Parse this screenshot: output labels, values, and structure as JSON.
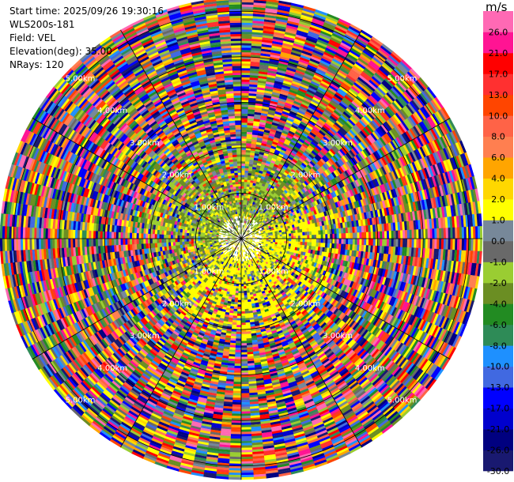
{
  "header": {
    "start_time": "Start time: 2025/09/26 19:30:16",
    "instrument": "WLS200s-181",
    "field": "Field: VEL",
    "elevation": "Elevation(deg): 35.00",
    "nrays": "NRays: 120"
  },
  "colorbar": {
    "title": "m/s",
    "bins": [
      {
        "label": "-30.0",
        "color": "#191970"
      },
      {
        "label": "-26.0",
        "color": "#000080"
      },
      {
        "label": "-21.0",
        "color": "#0000cd"
      },
      {
        "label": "-17.0",
        "color": "#0000ff"
      },
      {
        "label": "-13.0",
        "color": "#4169e1"
      },
      {
        "label": "-10.0",
        "color": "#1e90ff"
      },
      {
        "label": "-8.0",
        "color": "#2e8b57"
      },
      {
        "label": "-6.0",
        "color": "#228b22"
      },
      {
        "label": "-4.0",
        "color": "#6b8e23"
      },
      {
        "label": "-2.0",
        "color": "#9acd32"
      },
      {
        "label": "-1.0",
        "color": "#696969"
      },
      {
        "label": "0.0",
        "color": "#778899"
      },
      {
        "label": "1.0",
        "color": "#ffff00"
      },
      {
        "label": "2.0",
        "color": "#ffd700"
      },
      {
        "label": "4.0",
        "color": "#ffa500"
      },
      {
        "label": "6.0",
        "color": "#ff7f50"
      },
      {
        "label": "8.0",
        "color": "#ff6347"
      },
      {
        "label": "10.0",
        "color": "#ff4500"
      },
      {
        "label": "13.0",
        "color": "#ff3030"
      },
      {
        "label": "17.0",
        "color": "#ff0000"
      },
      {
        "label": "21.0",
        "color": "#ff1493"
      },
      {
        "label": "26.0",
        "color": "#ff69b4"
      }
    ]
  },
  "chart_data": {
    "type": "heatmap",
    "projection": "polar PPI scan",
    "field": "VEL",
    "units": "m/s",
    "nrays": 120,
    "elevation_deg": 35.0,
    "range_rings_km": [
      1.0,
      2.0,
      3.0,
      4.0,
      5.0
    ],
    "ring_labels": [
      "1.00km",
      "2.00km",
      "3.00km",
      "4.00km",
      "5.00km"
    ],
    "max_range_km": 5.3,
    "gate_km": 0.05,
    "azimuth_lines_deg": [
      0,
      30,
      60,
      90,
      120,
      150,
      180,
      210,
      240,
      270,
      300,
      330
    ],
    "color_levels": [
      -30,
      -26,
      -21,
      -17,
      -13,
      -10,
      -8,
      -6,
      -4,
      -2,
      -1,
      0,
      1,
      2,
      4,
      6,
      8,
      10,
      13,
      17,
      21,
      26,
      30
    ]
  }
}
